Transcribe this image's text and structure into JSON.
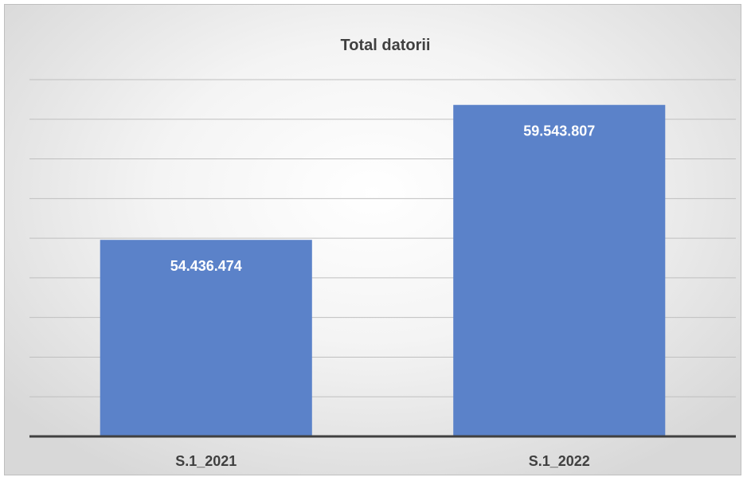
{
  "chart_data": {
    "type": "bar",
    "title": "Total datorii",
    "categories": [
      "S.1_2021",
      "S.1_2022"
    ],
    "values": [
      54436474,
      59543807
    ],
    "data_labels": [
      "54.436.474",
      "59.543.807"
    ],
    "xlabel": "",
    "ylabel": "",
    "ylim": [
      47000000,
      60500000
    ],
    "gridlines": 9,
    "grid": true,
    "legend": "none",
    "bar_color": "#5b82c9",
    "label_color": "#ffffff",
    "grid_color": "#bfbfbf",
    "axis_color": "#404040"
  }
}
